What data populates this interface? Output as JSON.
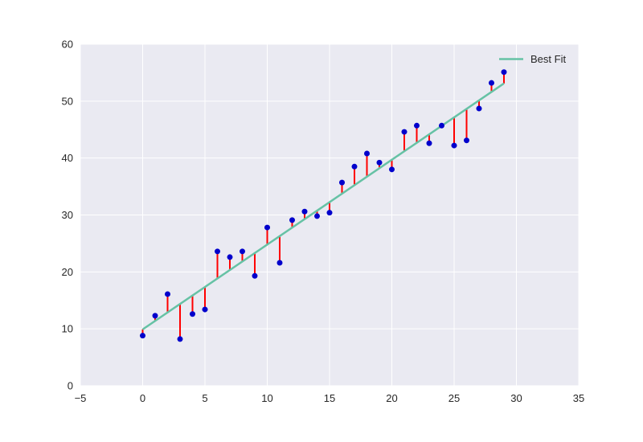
{
  "chart_data": {
    "type": "scatter",
    "title": "",
    "xlabel": "",
    "ylabel": "",
    "xlim": [
      -5,
      35
    ],
    "ylim": [
      0,
      60
    ],
    "xticks": [
      -5,
      0,
      5,
      10,
      15,
      20,
      25,
      30,
      35
    ],
    "yticks": [
      0,
      10,
      20,
      30,
      40,
      50,
      60
    ],
    "grid": true,
    "legend_position": "upper right",
    "x": [
      0,
      1,
      2,
      3,
      4,
      5,
      6,
      7,
      8,
      9,
      10,
      11,
      12,
      13,
      14,
      15,
      16,
      17,
      18,
      19,
      20,
      21,
      22,
      23,
      24,
      25,
      26,
      27,
      28,
      29
    ],
    "y": [
      8.8,
      12.3,
      16.1,
      8.2,
      12.6,
      13.4,
      23.6,
      22.6,
      23.6,
      19.3,
      27.8,
      21.6,
      29.1,
      30.6,
      29.8,
      30.4,
      35.7,
      38.5,
      40.8,
      39.2,
      38.0,
      44.6,
      45.7,
      42.6,
      45.7,
      42.2,
      43.1,
      48.7,
      53.2,
      55.1
    ],
    "series": [
      {
        "name": "data points",
        "kind": "scatter",
        "color": "#0000cc"
      },
      {
        "name": "residuals",
        "kind": "vlines",
        "color": "#ff0000"
      },
      {
        "name": "Best Fit",
        "kind": "line",
        "color": "#66c2a5",
        "slope": 1.49,
        "intercept": 9.9,
        "x_range": [
          0,
          29
        ]
      }
    ],
    "legend": [
      "Best Fit"
    ]
  },
  "colors": {
    "plot_bg": "#eaeaf2",
    "grid": "#ffffff",
    "point": "#0000cc",
    "residual": "#ff0000",
    "fit": "#66c2a5"
  }
}
